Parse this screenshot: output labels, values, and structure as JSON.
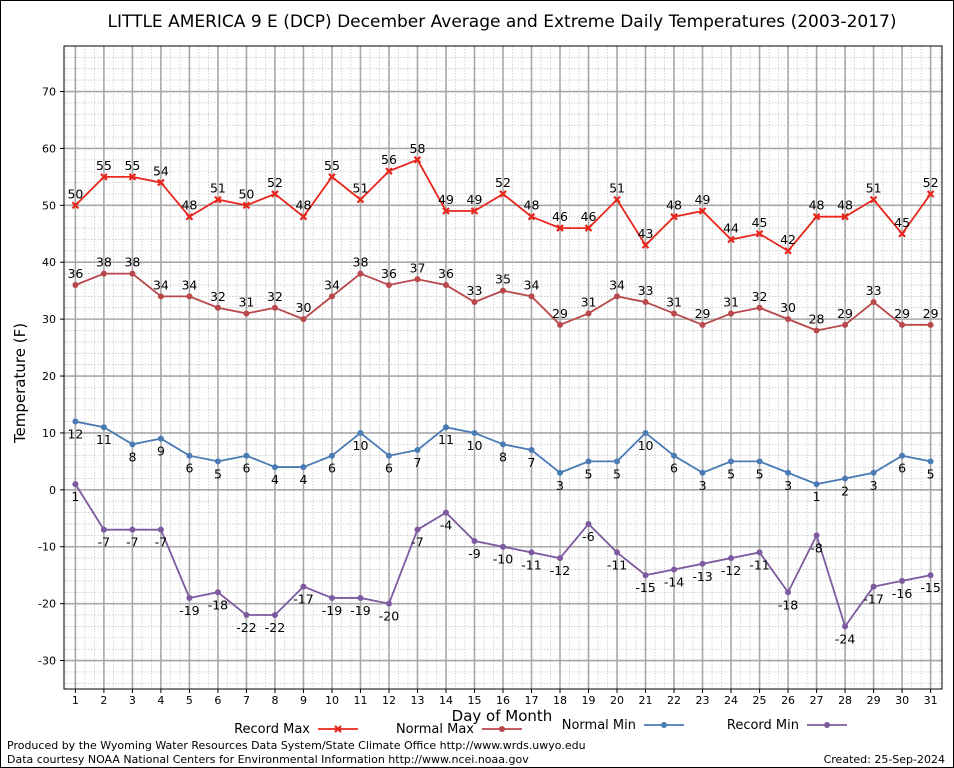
{
  "chart_data": {
    "type": "line",
    "title": "LITTLE AMERICA 9 E (DCP) December Average and Extreme Daily Temperatures (2003-2017)",
    "xlabel": "Day of Month",
    "ylabel": "Temperature (F)",
    "x": [
      1,
      2,
      3,
      4,
      5,
      6,
      7,
      8,
      9,
      10,
      11,
      12,
      13,
      14,
      15,
      16,
      17,
      18,
      19,
      20,
      21,
      22,
      23,
      24,
      25,
      26,
      27,
      28,
      29,
      30,
      31
    ],
    "xlim": [
      0.6,
      31.4
    ],
    "ylim": [
      -35,
      78
    ],
    "yticks": [
      -30,
      -20,
      -10,
      0,
      10,
      20,
      30,
      40,
      50,
      60,
      70
    ],
    "grid": true,
    "legend_position": "bottom",
    "series": [
      {
        "name": "Record Max",
        "color": "#e8261d",
        "marker": "x",
        "values": [
          50,
          55,
          55,
          54,
          48,
          51,
          50,
          52,
          48,
          55,
          51,
          56,
          58,
          49,
          49,
          52,
          48,
          46,
          46,
          51,
          43,
          48,
          49,
          44,
          45,
          42,
          48,
          48,
          51,
          45,
          52
        ]
      },
      {
        "name": "Normal Max",
        "color": "#b8484b",
        "marker": "dot",
        "values": [
          36,
          38,
          38,
          34,
          34,
          32,
          31,
          32,
          30,
          34,
          38,
          36,
          37,
          36,
          33,
          35,
          34,
          29,
          31,
          34,
          33,
          31,
          29,
          31,
          32,
          30,
          28,
          29,
          33,
          29,
          29
        ]
      },
      {
        "name": "Normal Min",
        "color": "#4b7bb5",
        "marker": "dot",
        "values": [
          12,
          11,
          8,
          9,
          6,
          5,
          6,
          4,
          4,
          6,
          10,
          6,
          7,
          11,
          10,
          8,
          7,
          3,
          5,
          5,
          10,
          6,
          3,
          5,
          5,
          3,
          1,
          2,
          3,
          6,
          5
        ]
      },
      {
        "name": "Record Min",
        "color": "#7d5aa0",
        "marker": "dot",
        "values": [
          1,
          -7,
          -7,
          -7,
          -19,
          -18,
          -22,
          -22,
          -17,
          -19,
          -19,
          -20,
          -7,
          -4,
          -9,
          -10,
          -11,
          -12,
          -6,
          -11,
          -15,
          -14,
          -13,
          -12,
          -11,
          -18,
          -8,
          -24,
          -17,
          -16,
          -15
        ]
      }
    ]
  },
  "footer": {
    "produced_by": "Produced by the Wyoming Water Resources Data System/State Climate Office http://www.wrds.uwyo.edu",
    "data_courtesy": "Data courtesy NOAA National Centers for Environmental Information http://www.ncei.noaa.gov",
    "created": "Created:  25-Sep-2024"
  }
}
